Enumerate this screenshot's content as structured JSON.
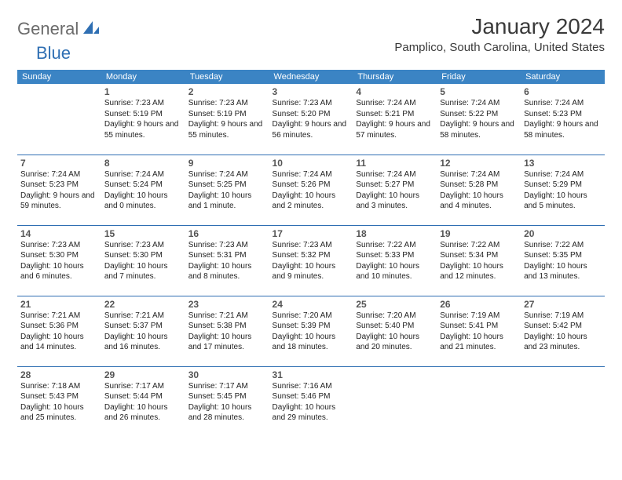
{
  "logo": {
    "general": "General",
    "blue": "Blue"
  },
  "title": "January 2024",
  "location": "Pamplico, South Carolina, United States",
  "colors": {
    "header_bg": "#3b84c4",
    "header_text": "#ffffff",
    "row_border": "#2f6fb3",
    "logo_gray": "#6b6b6b",
    "logo_blue": "#2f6fb3",
    "body_text": "#222222",
    "title_text": "#3a3a3a",
    "daynum_text": "#555555",
    "background": "#ffffff"
  },
  "typography": {
    "month_title_fontsize": 28,
    "location_fontsize": 15,
    "header_fontsize": 11,
    "daynum_fontsize": 12,
    "cell_fontsize": 10,
    "logo_fontsize": 22
  },
  "weekdays": [
    "Sunday",
    "Monday",
    "Tuesday",
    "Wednesday",
    "Thursday",
    "Friday",
    "Saturday"
  ],
  "days": [
    {
      "n": 1,
      "sr": "7:23 AM",
      "ss": "5:19 PM",
      "dl": "9 hours and 55 minutes."
    },
    {
      "n": 2,
      "sr": "7:23 AM",
      "ss": "5:19 PM",
      "dl": "9 hours and 55 minutes."
    },
    {
      "n": 3,
      "sr": "7:23 AM",
      "ss": "5:20 PM",
      "dl": "9 hours and 56 minutes."
    },
    {
      "n": 4,
      "sr": "7:24 AM",
      "ss": "5:21 PM",
      "dl": "9 hours and 57 minutes."
    },
    {
      "n": 5,
      "sr": "7:24 AM",
      "ss": "5:22 PM",
      "dl": "9 hours and 58 minutes."
    },
    {
      "n": 6,
      "sr": "7:24 AM",
      "ss": "5:23 PM",
      "dl": "9 hours and 58 minutes."
    },
    {
      "n": 7,
      "sr": "7:24 AM",
      "ss": "5:23 PM",
      "dl": "9 hours and 59 minutes."
    },
    {
      "n": 8,
      "sr": "7:24 AM",
      "ss": "5:24 PM",
      "dl": "10 hours and 0 minutes."
    },
    {
      "n": 9,
      "sr": "7:24 AM",
      "ss": "5:25 PM",
      "dl": "10 hours and 1 minute."
    },
    {
      "n": 10,
      "sr": "7:24 AM",
      "ss": "5:26 PM",
      "dl": "10 hours and 2 minutes."
    },
    {
      "n": 11,
      "sr": "7:24 AM",
      "ss": "5:27 PM",
      "dl": "10 hours and 3 minutes."
    },
    {
      "n": 12,
      "sr": "7:24 AM",
      "ss": "5:28 PM",
      "dl": "10 hours and 4 minutes."
    },
    {
      "n": 13,
      "sr": "7:24 AM",
      "ss": "5:29 PM",
      "dl": "10 hours and 5 minutes."
    },
    {
      "n": 14,
      "sr": "7:23 AM",
      "ss": "5:30 PM",
      "dl": "10 hours and 6 minutes."
    },
    {
      "n": 15,
      "sr": "7:23 AM",
      "ss": "5:30 PM",
      "dl": "10 hours and 7 minutes."
    },
    {
      "n": 16,
      "sr": "7:23 AM",
      "ss": "5:31 PM",
      "dl": "10 hours and 8 minutes."
    },
    {
      "n": 17,
      "sr": "7:23 AM",
      "ss": "5:32 PM",
      "dl": "10 hours and 9 minutes."
    },
    {
      "n": 18,
      "sr": "7:22 AM",
      "ss": "5:33 PM",
      "dl": "10 hours and 10 minutes."
    },
    {
      "n": 19,
      "sr": "7:22 AM",
      "ss": "5:34 PM",
      "dl": "10 hours and 12 minutes."
    },
    {
      "n": 20,
      "sr": "7:22 AM",
      "ss": "5:35 PM",
      "dl": "10 hours and 13 minutes."
    },
    {
      "n": 21,
      "sr": "7:21 AM",
      "ss": "5:36 PM",
      "dl": "10 hours and 14 minutes."
    },
    {
      "n": 22,
      "sr": "7:21 AM",
      "ss": "5:37 PM",
      "dl": "10 hours and 16 minutes."
    },
    {
      "n": 23,
      "sr": "7:21 AM",
      "ss": "5:38 PM",
      "dl": "10 hours and 17 minutes."
    },
    {
      "n": 24,
      "sr": "7:20 AM",
      "ss": "5:39 PM",
      "dl": "10 hours and 18 minutes."
    },
    {
      "n": 25,
      "sr": "7:20 AM",
      "ss": "5:40 PM",
      "dl": "10 hours and 20 minutes."
    },
    {
      "n": 26,
      "sr": "7:19 AM",
      "ss": "5:41 PM",
      "dl": "10 hours and 21 minutes."
    },
    {
      "n": 27,
      "sr": "7:19 AM",
      "ss": "5:42 PM",
      "dl": "10 hours and 23 minutes."
    },
    {
      "n": 28,
      "sr": "7:18 AM",
      "ss": "5:43 PM",
      "dl": "10 hours and 25 minutes."
    },
    {
      "n": 29,
      "sr": "7:17 AM",
      "ss": "5:44 PM",
      "dl": "10 hours and 26 minutes."
    },
    {
      "n": 30,
      "sr": "7:17 AM",
      "ss": "5:45 PM",
      "dl": "10 hours and 28 minutes."
    },
    {
      "n": 31,
      "sr": "7:16 AM",
      "ss": "5:46 PM",
      "dl": "10 hours and 29 minutes."
    }
  ],
  "labels": {
    "sunrise": "Sunrise:",
    "sunset": "Sunset:",
    "daylight": "Daylight:"
  },
  "first_weekday_index": 1
}
